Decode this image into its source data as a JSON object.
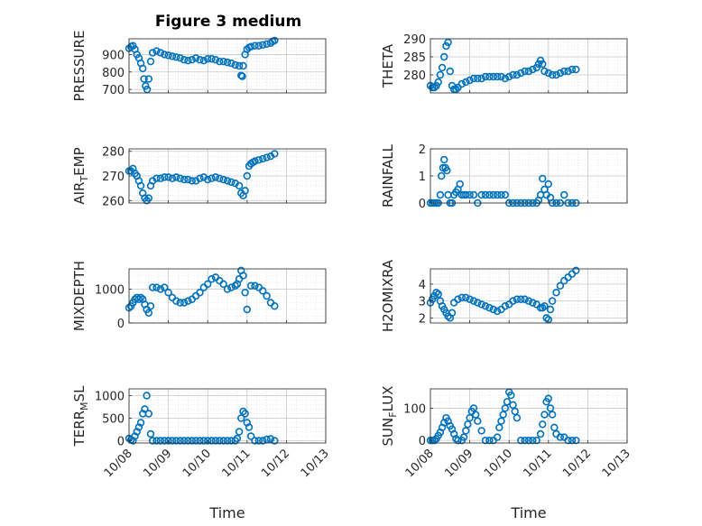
{
  "figure": {
    "title": "Figure 3 medium",
    "marker_color": "#0072BD"
  },
  "x_axis": {
    "label": "Time",
    "ticks": [
      "10/08",
      "10/09",
      "10/10",
      "10/11",
      "10/12",
      "10/13"
    ]
  },
  "chart_data": [
    {
      "type": "scatter",
      "ylabel": "PRESSURE",
      "xlim": [
        0,
        5
      ],
      "ylim": [
        680,
        990
      ],
      "yticks": [
        700,
        800,
        900
      ],
      "ytick_labels": [
        "700",
        "800",
        "900"
      ],
      "grid": true,
      "x": [
        0.0,
        0.05,
        0.1,
        0.15,
        0.2,
        0.25,
        0.3,
        0.35,
        0.38,
        0.42,
        0.46,
        0.5,
        0.55,
        0.6,
        0.7,
        0.8,
        0.9,
        1.0,
        1.1,
        1.2,
        1.3,
        1.4,
        1.5,
        1.6,
        1.7,
        1.8,
        1.9,
        2.0,
        2.1,
        2.2,
        2.3,
        2.4,
        2.5,
        2.6,
        2.7,
        2.8,
        2.85,
        2.88,
        2.9,
        2.95,
        3.0,
        3.05,
        3.1,
        3.2,
        3.3,
        3.4,
        3.5,
        3.6,
        3.65,
        3.7
      ],
      "y": [
        935,
        945,
        950,
        930,
        900,
        880,
        850,
        820,
        760,
        720,
        700,
        760,
        860,
        910,
        920,
        910,
        900,
        895,
        890,
        885,
        880,
        870,
        865,
        870,
        880,
        870,
        865,
        875,
        875,
        870,
        860,
        860,
        855,
        850,
        840,
        835,
        780,
        775,
        835,
        900,
        930,
        940,
        945,
        950,
        950,
        955,
        960,
        965,
        975,
        980
      ]
    },
    {
      "type": "scatter",
      "ylabel": "THETA",
      "xlim": [
        0,
        5
      ],
      "ylim": [
        275,
        290
      ],
      "yticks": [
        280,
        285,
        290
      ],
      "ytick_labels": [
        "280",
        "285",
        "290"
      ],
      "grid": true,
      "x": [
        0.0,
        0.05,
        0.1,
        0.15,
        0.2,
        0.25,
        0.3,
        0.35,
        0.4,
        0.45,
        0.5,
        0.55,
        0.6,
        0.65,
        0.7,
        0.8,
        0.9,
        1.0,
        1.1,
        1.2,
        1.3,
        1.4,
        1.5,
        1.6,
        1.7,
        1.8,
        1.9,
        2.0,
        2.1,
        2.2,
        2.3,
        2.4,
        2.5,
        2.6,
        2.7,
        2.75,
        2.8,
        2.85,
        2.9,
        3.0,
        3.1,
        3.2,
        3.3,
        3.4,
        3.5,
        3.6,
        3.7
      ],
      "y": [
        277,
        276.5,
        276.5,
        277,
        278,
        280,
        282,
        285,
        288,
        289,
        281,
        277,
        276,
        276,
        276.5,
        277.5,
        278,
        278.5,
        279,
        279,
        279,
        279.5,
        279.5,
        279.5,
        279.5,
        279.5,
        279,
        279.5,
        280,
        280,
        280.5,
        281,
        281,
        281.5,
        282,
        283,
        284,
        283,
        281,
        280.5,
        280,
        280,
        280.5,
        281,
        281,
        281.5,
        281.5
      ]
    },
    {
      "type": "scatter",
      "ylabel": "AIR_TEMP",
      "xlim": [
        0,
        5
      ],
      "ylim": [
        259,
        281
      ],
      "yticks": [
        260,
        270,
        280
      ],
      "ytick_labels": [
        "260",
        "270",
        "280"
      ],
      "grid": true,
      "x": [
        0.0,
        0.05,
        0.1,
        0.15,
        0.2,
        0.25,
        0.3,
        0.35,
        0.4,
        0.45,
        0.5,
        0.55,
        0.6,
        0.7,
        0.8,
        0.9,
        1.0,
        1.1,
        1.2,
        1.3,
        1.4,
        1.5,
        1.6,
        1.7,
        1.8,
        1.9,
        2.0,
        2.1,
        2.2,
        2.3,
        2.4,
        2.5,
        2.6,
        2.7,
        2.8,
        2.85,
        2.9,
        2.95,
        3.0,
        3.05,
        3.1,
        3.15,
        3.2,
        3.3,
        3.4,
        3.5,
        3.6,
        3.7
      ],
      "y": [
        272,
        272,
        273,
        271,
        270,
        268,
        266,
        263,
        261,
        260,
        261,
        266,
        268,
        269,
        269,
        269.5,
        269.5,
        269,
        269.5,
        269,
        268.5,
        268.5,
        268,
        268,
        269,
        269.5,
        268.5,
        269,
        269.5,
        269,
        268.5,
        268,
        267.5,
        267,
        266,
        263,
        262,
        264,
        270,
        274,
        275,
        275.5,
        276,
        276.5,
        277,
        277.5,
        278,
        279
      ]
    },
    {
      "type": "scatter",
      "ylabel": "RAINFALL",
      "xlim": [
        0,
        5
      ],
      "ylim": [
        0,
        2
      ],
      "yticks": [
        0,
        1,
        2
      ],
      "ytick_labels": [
        "0",
        "1",
        "2"
      ],
      "grid": true,
      "x": [
        0.0,
        0.05,
        0.1,
        0.15,
        0.2,
        0.25,
        0.28,
        0.32,
        0.35,
        0.38,
        0.42,
        0.45,
        0.5,
        0.55,
        0.6,
        0.65,
        0.7,
        0.75,
        0.8,
        0.85,
        0.9,
        1.0,
        1.1,
        1.2,
        1.3,
        1.4,
        1.5,
        1.6,
        1.7,
        1.8,
        1.9,
        2.0,
        2.1,
        2.2,
        2.3,
        2.4,
        2.5,
        2.6,
        2.7,
        2.75,
        2.8,
        2.85,
        2.9,
        2.95,
        3.0,
        3.05,
        3.1,
        3.2,
        3.3,
        3.4,
        3.5,
        3.6,
        3.7
      ],
      "y": [
        0,
        0,
        0,
        0,
        0,
        0.3,
        1.0,
        1.3,
        1.6,
        1.3,
        1.2,
        0.3,
        0,
        0,
        0.3,
        0.4,
        0.5,
        0.7,
        0.3,
        0.3,
        0.3,
        0.3,
        0.3,
        0,
        0.3,
        0.3,
        0.3,
        0.3,
        0.3,
        0.3,
        0.3,
        0,
        0,
        0,
        0,
        0,
        0,
        0,
        0,
        0.1,
        0.3,
        0.9,
        0.5,
        0.3,
        0.7,
        0.2,
        0,
        0,
        0,
        0.3,
        0,
        0,
        0
      ]
    },
    {
      "type": "scatter",
      "ylabel": "MIXDEPTH",
      "xlim": [
        0,
        5
      ],
      "ylim": [
        0,
        1600
      ],
      "yticks": [
        0,
        1000
      ],
      "ytick_labels": [
        "0",
        "1000"
      ],
      "grid": true,
      "x": [
        0.0,
        0.05,
        0.1,
        0.15,
        0.2,
        0.25,
        0.3,
        0.35,
        0.4,
        0.45,
        0.5,
        0.55,
        0.6,
        0.7,
        0.8,
        0.9,
        1.0,
        1.1,
        1.2,
        1.3,
        1.4,
        1.5,
        1.6,
        1.7,
        1.8,
        1.9,
        2.0,
        2.1,
        2.2,
        2.3,
        2.4,
        2.5,
        2.6,
        2.7,
        2.75,
        2.8,
        2.85,
        2.9,
        2.95,
        3.0,
        3.1,
        3.2,
        3.3,
        3.4,
        3.5,
        3.6,
        3.7
      ],
      "y": [
        450,
        500,
        600,
        700,
        750,
        700,
        750,
        700,
        550,
        400,
        300,
        500,
        1050,
        1050,
        1000,
        1050,
        900,
        750,
        650,
        600,
        600,
        650,
        700,
        800,
        900,
        1050,
        1150,
        1300,
        1350,
        1250,
        1150,
        1000,
        1050,
        1100,
        1150,
        1300,
        1550,
        1400,
        900,
        400,
        1100,
        1100,
        1050,
        950,
        800,
        600,
        500
      ]
    },
    {
      "type": "scatter",
      "ylabel": "H2OMIXRA",
      "xlim": [
        0,
        5
      ],
      "ylim": [
        1.7,
        4.9
      ],
      "yticks": [
        2,
        3,
        4
      ],
      "ytick_labels": [
        "2",
        "3",
        "4"
      ],
      "grid": true,
      "x": [
        0.0,
        0.05,
        0.1,
        0.15,
        0.2,
        0.25,
        0.3,
        0.35,
        0.4,
        0.45,
        0.5,
        0.55,
        0.6,
        0.7,
        0.8,
        0.9,
        1.0,
        1.1,
        1.2,
        1.3,
        1.4,
        1.5,
        1.6,
        1.7,
        1.8,
        1.9,
        2.0,
        2.1,
        2.2,
        2.3,
        2.4,
        2.5,
        2.6,
        2.7,
        2.8,
        2.85,
        2.9,
        2.95,
        3.0,
        3.05,
        3.1,
        3.2,
        3.3,
        3.4,
        3.5,
        3.6,
        3.7
      ],
      "y": [
        2.9,
        3.1,
        3.3,
        3.5,
        3.4,
        3.0,
        2.7,
        2.5,
        2.3,
        2.1,
        2.0,
        2.3,
        2.9,
        3.1,
        3.2,
        3.2,
        3.1,
        3.0,
        2.9,
        2.8,
        2.7,
        2.6,
        2.5,
        2.4,
        2.5,
        2.7,
        2.8,
        3.0,
        3.1,
        3.1,
        3.1,
        3.0,
        2.9,
        2.8,
        2.6,
        2.6,
        2.7,
        2.0,
        1.9,
        2.5,
        3.0,
        3.5,
        3.9,
        4.2,
        4.4,
        4.6,
        4.8
      ]
    },
    {
      "type": "scatter",
      "ylabel": "TERR_MSL",
      "xlim": [
        0,
        5
      ],
      "ylim": [
        -50,
        1150
      ],
      "yticks": [
        0,
        500,
        1000
      ],
      "ytick_labels": [
        "0",
        "500",
        "1000"
      ],
      "grid": true,
      "x": [
        0.0,
        0.05,
        0.1,
        0.15,
        0.2,
        0.25,
        0.3,
        0.35,
        0.4,
        0.45,
        0.5,
        0.55,
        0.6,
        0.7,
        0.8,
        0.9,
        1.0,
        1.1,
        1.2,
        1.3,
        1.4,
        1.5,
        1.6,
        1.7,
        1.8,
        1.9,
        2.0,
        2.1,
        2.2,
        2.3,
        2.4,
        2.5,
        2.6,
        2.7,
        2.75,
        2.8,
        2.85,
        2.9,
        2.95,
        3.0,
        3.05,
        3.1,
        3.2,
        3.3,
        3.4,
        3.5,
        3.6,
        3.7
      ],
      "y": [
        50,
        20,
        0,
        100,
        200,
        300,
        400,
        600,
        700,
        1000,
        600,
        150,
        0,
        0,
        0,
        0,
        0,
        0,
        0,
        0,
        0,
        0,
        0,
        0,
        0,
        0,
        0,
        0,
        0,
        0,
        0,
        0,
        0,
        0,
        50,
        200,
        500,
        650,
        600,
        400,
        300,
        100,
        0,
        0,
        0,
        30,
        40,
        0
      ]
    },
    {
      "type": "scatter",
      "ylabel": "SUN_FLUX",
      "xlim": [
        0,
        5
      ],
      "ylim": [
        -8,
        160
      ],
      "yticks": [
        0,
        100
      ],
      "ytick_labels": [
        "0",
        "100"
      ],
      "grid": true,
      "x": [
        0.0,
        0.05,
        0.1,
        0.15,
        0.2,
        0.25,
        0.3,
        0.35,
        0.4,
        0.45,
        0.5,
        0.55,
        0.6,
        0.65,
        0.7,
        0.8,
        0.85,
        0.9,
        0.95,
        1.0,
        1.05,
        1.1,
        1.15,
        1.2,
        1.3,
        1.4,
        1.5,
        1.6,
        1.7,
        1.75,
        1.8,
        1.85,
        1.9,
        1.95,
        2.0,
        2.05,
        2.1,
        2.15,
        2.2,
        2.3,
        2.4,
        2.5,
        2.6,
        2.7,
        2.8,
        2.85,
        2.9,
        2.95,
        3.0,
        3.05,
        3.1,
        3.15,
        3.2,
        3.3,
        3.4,
        3.5,
        3.6,
        3.7
      ],
      "y": [
        0,
        0,
        0,
        5,
        15,
        25,
        40,
        55,
        70,
        60,
        45,
        35,
        20,
        5,
        0,
        0,
        10,
        30,
        50,
        70,
        90,
        100,
        80,
        60,
        30,
        0,
        0,
        0,
        10,
        40,
        60,
        80,
        100,
        120,
        150,
        140,
        110,
        90,
        70,
        0,
        0,
        0,
        0,
        0,
        20,
        50,
        80,
        120,
        130,
        100,
        80,
        40,
        20,
        10,
        10,
        0,
        0,
        0
      ]
    }
  ]
}
